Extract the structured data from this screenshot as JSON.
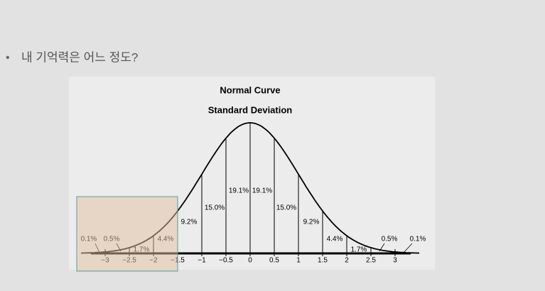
{
  "bullet": "내 기억력은 어느 정도?",
  "chart_data": {
    "type": "normal-curve",
    "title": "Normal Curve",
    "subtitle": "Standard Deviation",
    "xlim": [
      -3.5,
      3.5
    ],
    "xticks": [
      {
        "value": -3,
        "label": "−3"
      },
      {
        "value": -2.5,
        "label": "−2.5"
      },
      {
        "value": -2,
        "label": "−2"
      },
      {
        "value": -1.5,
        "label": "−1.5"
      },
      {
        "value": -1,
        "label": "−1"
      },
      {
        "value": -0.5,
        "label": "−0.5"
      },
      0,
      0.5,
      1,
      1.5,
      2,
      2.5,
      3
    ],
    "values": [
      0.1,
      0.5,
      1.7,
      4.4,
      9.2,
      15.0,
      19.1,
      19.1,
      15.0,
      9.2,
      4.4,
      1.7,
      0.5,
      0.1
    ],
    "value_labels": [
      "0.1%",
      "0.5%",
      "1.7%",
      "4.4%",
      "9.2%",
      "15.0%",
      "19.1%",
      "19.1%",
      "15.0%",
      "9.2%",
      "4.4%",
      "1.7%",
      "0.5%",
      "0.1%"
    ],
    "color": "#000000"
  }
}
